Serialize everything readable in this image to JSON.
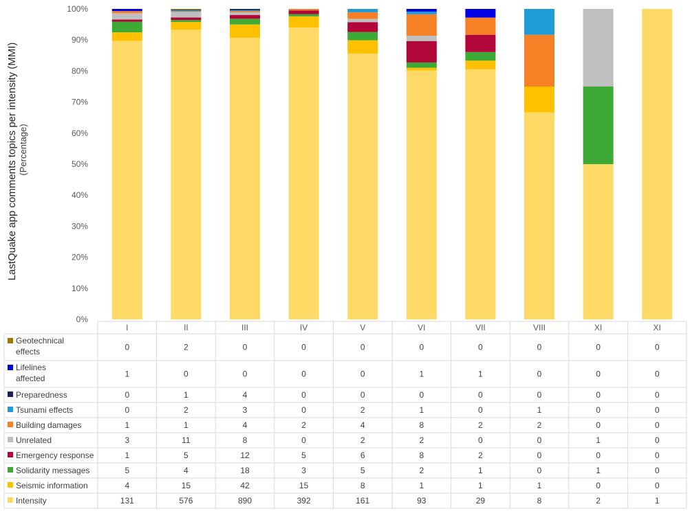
{
  "chart_data": {
    "type": "bar",
    "stacked": true,
    "normalized": true,
    "ylabel": "LastQuake app comments topics per intensity (MMI)",
    "ylabel_sub": "(Percentage)",
    "yticks": [
      "0%",
      "10%",
      "20%",
      "30%",
      "40%",
      "50%",
      "60%",
      "70%",
      "80%",
      "90%",
      "100%"
    ],
    "ylim": [
      0,
      100
    ],
    "grid": false,
    "legend": "data-table-below",
    "categories": [
      "I",
      "II",
      "III",
      "IV",
      "V",
      "VI",
      "VII",
      "VIII",
      "XI",
      "XI"
    ],
    "series": [
      {
        "name": "Intensity",
        "color": "#FFD966",
        "values": [
          131,
          576,
          890,
          392,
          161,
          93,
          29,
          8,
          2,
          1
        ]
      },
      {
        "name": "Seismic information",
        "color": "#FFC000",
        "values": [
          4,
          15,
          42,
          15,
          8,
          1,
          1,
          1,
          0,
          0
        ]
      },
      {
        "name": "Solidarity messages",
        "color": "#3DAA35",
        "values": [
          5,
          4,
          18,
          3,
          5,
          2,
          1,
          0,
          1,
          0
        ]
      },
      {
        "name": "Emergency response",
        "color": "#B0063A",
        "values": [
          1,
          5,
          12,
          5,
          6,
          8,
          2,
          0,
          0,
          0
        ]
      },
      {
        "name": "Unrelated",
        "color": "#BFBFBF",
        "values": [
          3,
          11,
          8,
          0,
          2,
          2,
          0,
          0,
          1,
          0
        ]
      },
      {
        "name": "Building damages",
        "color": "#F58025",
        "values": [
          1,
          1,
          4,
          2,
          4,
          8,
          2,
          2,
          0,
          0
        ]
      },
      {
        "name": "Tsunami effects",
        "color": "#1F9BD7",
        "values": [
          0,
          2,
          3,
          0,
          2,
          1,
          0,
          1,
          0,
          0
        ]
      },
      {
        "name": "Preparedness",
        "color": "#1F1F5E",
        "values": [
          0,
          1,
          4,
          0,
          0,
          0,
          0,
          0,
          0,
          0
        ]
      },
      {
        "name": "Lifelines affected",
        "color": "#0000E6",
        "values": [
          1,
          0,
          0,
          0,
          0,
          1,
          1,
          0,
          0,
          0
        ]
      },
      {
        "name": "Geotechnical effects",
        "color": "#9C7A00",
        "values": [
          0,
          2,
          0,
          0,
          0,
          0,
          0,
          0,
          0,
          0
        ]
      }
    ],
    "table_order": [
      "Geotechnical effects",
      "Lifelines affected",
      "Preparedness",
      "Tsunami effects",
      "Building damages",
      "Unrelated",
      "Emergency response",
      "Solidarity messages",
      "Seismic information",
      "Intensity"
    ]
  }
}
